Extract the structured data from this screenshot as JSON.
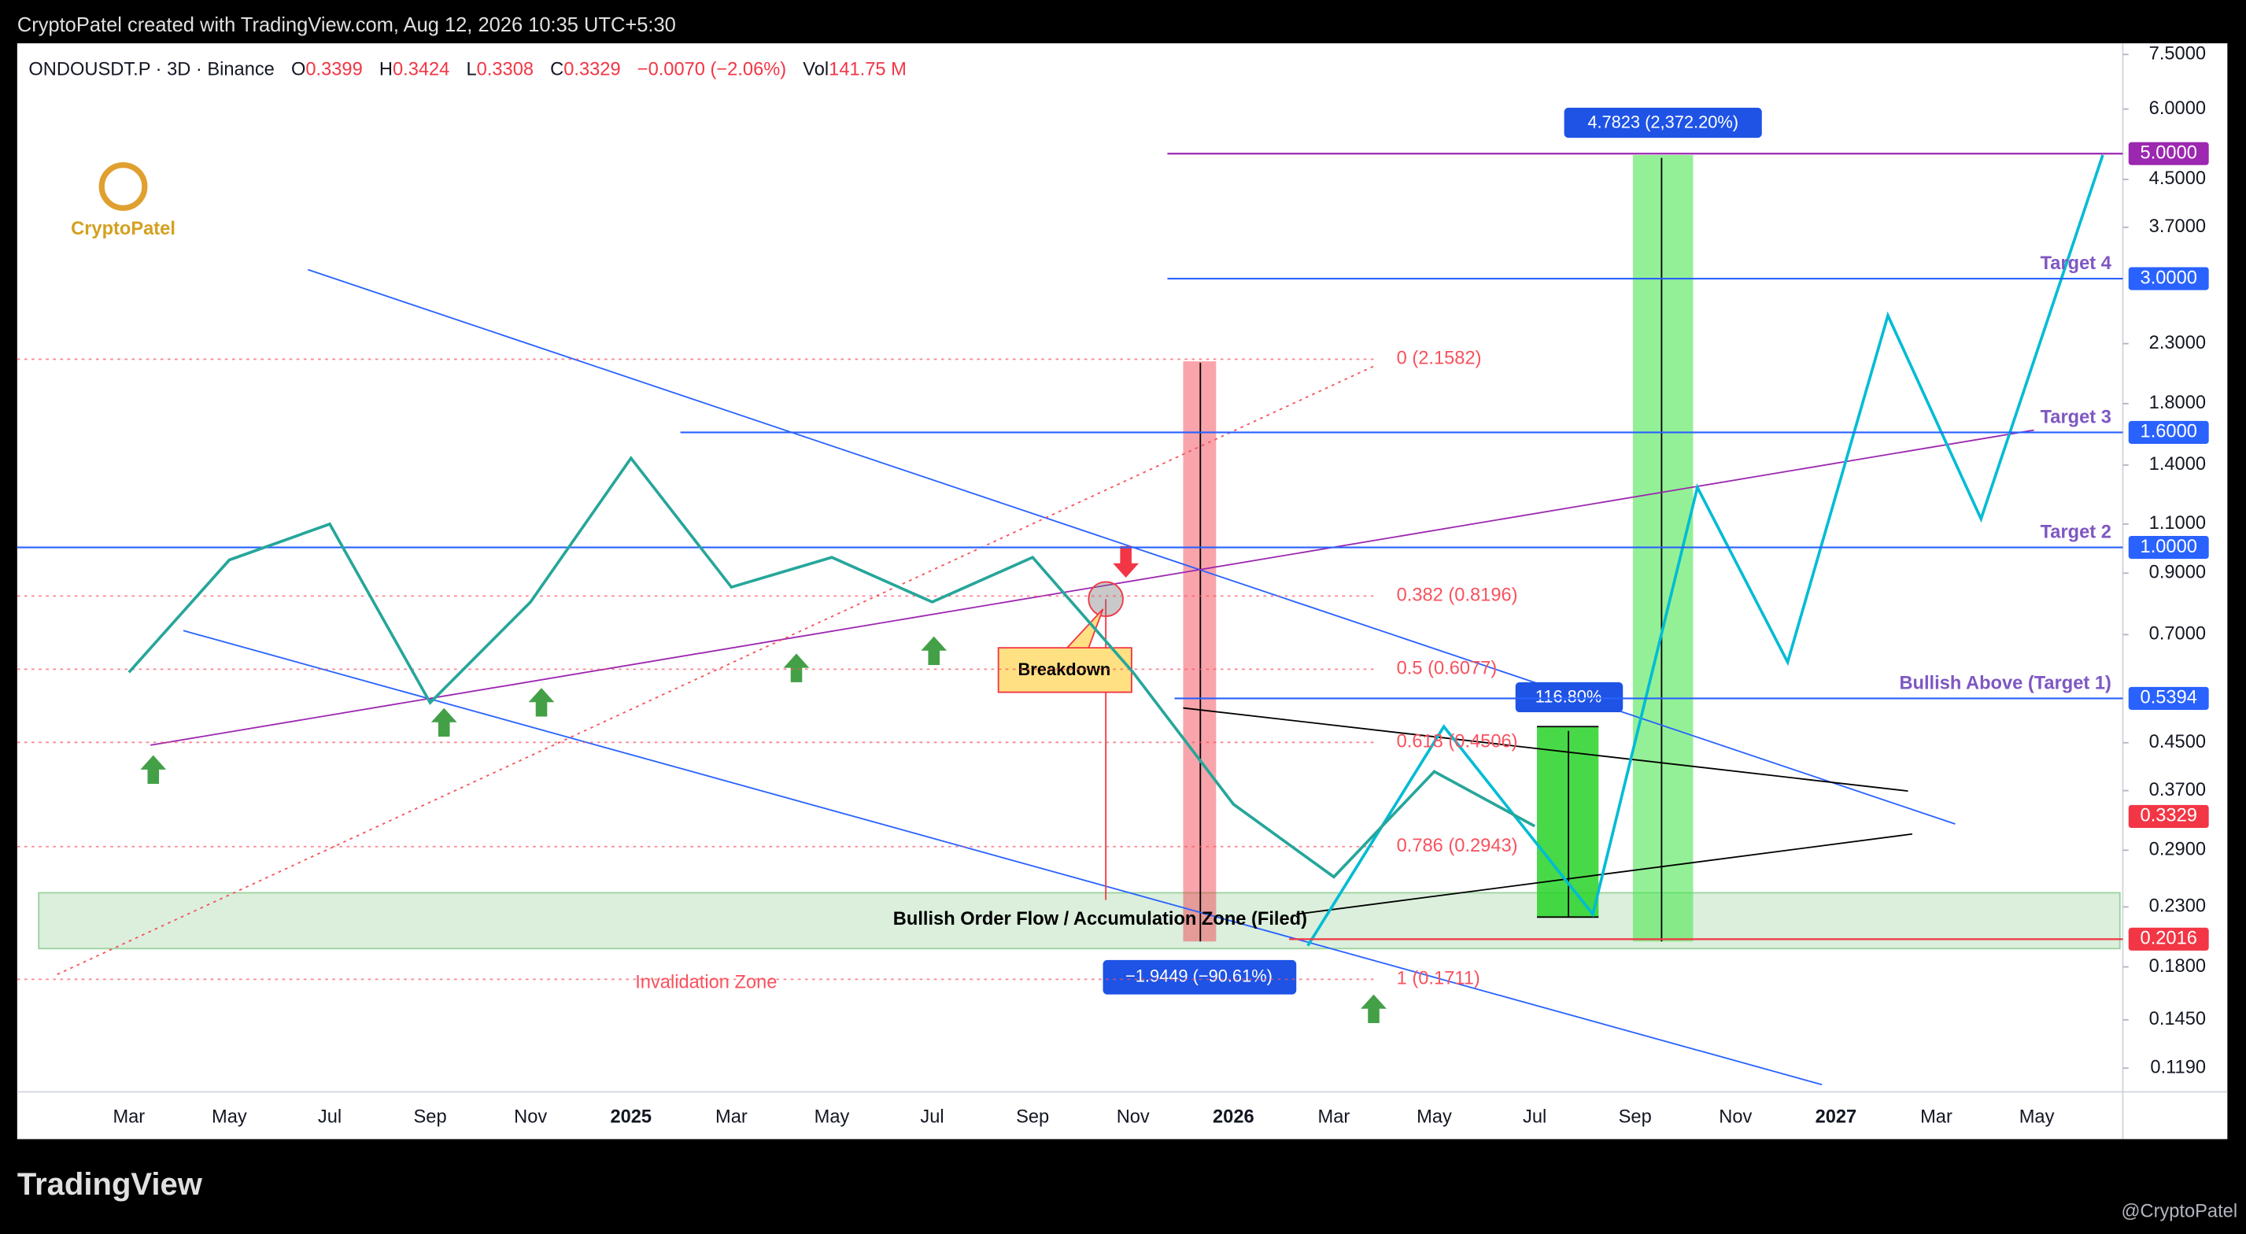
{
  "header": {
    "text": "CryptoPatel created with TradingView.com, Aug 12, 2026 10:35 UTC+5:30"
  },
  "legend": {
    "symbol": "ONDOUSDT.P · 3D · Binance",
    "open": {
      "label": "O",
      "value": "0.3399"
    },
    "high": {
      "label": "H",
      "value": "0.3424"
    },
    "low": {
      "label": "L",
      "value": "0.3308"
    },
    "close": {
      "label": "C",
      "value": "0.3329"
    },
    "change": "−0.0070 (−2.06%)",
    "volume": {
      "label": "Vol",
      "value": "141.75 M"
    }
  },
  "logo": "CryptoPatel",
  "chart_data": {
    "type": "line",
    "log_scale": true,
    "color": "#26a69a",
    "categories": [
      "Mar",
      "May",
      "Jul",
      "Sep",
      "Nov",
      "2025",
      "Mar",
      "May",
      "Jul",
      "Sep",
      "Nov",
      "2026",
      "Mar",
      "May",
      "Jul",
      "Sep",
      "Nov",
      "2027",
      "Mar",
      "May"
    ],
    "values": [
      0.6,
      0.95,
      1.1,
      0.53,
      0.8,
      1.44,
      0.85,
      0.96,
      0.8,
      0.96,
      0.6,
      0.35,
      0.26,
      0.4,
      0.32,
      null,
      null,
      null,
      null,
      null
    ],
    "ylim": [
      0.108,
      7.85
    ],
    "yticks": [
      {
        "value": 7.5,
        "label": "7.5000"
      },
      {
        "value": 6,
        "label": "6.0000"
      },
      {
        "value": 4.5,
        "label": "4.5000"
      },
      {
        "value": 3.7,
        "label": "3.7000"
      },
      {
        "value": 2.3,
        "label": "2.3000"
      },
      {
        "value": 1.8,
        "label": "1.8000"
      },
      {
        "value": 1.4,
        "label": "1.4000"
      },
      {
        "value": 1.1,
        "label": "1.1000"
      },
      {
        "value": 0.9,
        "label": "0.9000"
      },
      {
        "value": 0.7,
        "label": "0.7000"
      },
      {
        "value": 0.45,
        "label": "0.4500"
      },
      {
        "value": 0.37,
        "label": "0.3700"
      },
      {
        "value": 0.29,
        "label": "0.2900"
      },
      {
        "value": 0.23,
        "label": "0.2300"
      },
      {
        "value": 0.18,
        "label": "0.1800"
      },
      {
        "value": 0.145,
        "label": "0.1450"
      },
      {
        "value": 0.119,
        "label": "0.1190"
      }
    ],
    "price_levels": [
      {
        "value": 5,
        "label": "5.0000",
        "color": "#9c27b0"
      },
      {
        "value": 3,
        "label": "3.0000",
        "color": "#2962ff",
        "target": "Target 4"
      },
      {
        "value": 1.6,
        "label": "1.6000",
        "color": "#2962ff",
        "target": "Target 3"
      },
      {
        "value": 1,
        "label": "1.0000",
        "color": "#2962ff",
        "target": "Target 2"
      },
      {
        "value": 0.5394,
        "label": "0.5394",
        "color": "#2962ff",
        "target": "Bullish Above (Target 1)"
      },
      {
        "value": 0.3329,
        "label": "0.3329",
        "color": "#f23645"
      },
      {
        "value": 0.2016,
        "label": "0.2016",
        "color": "#f23645"
      }
    ],
    "fib_color": "#f7525f",
    "fib_levels": [
      {
        "value": 2.1582,
        "label": "0 (2.1582)"
      },
      {
        "value": 0.8196,
        "label": "0.382 (0.8196)"
      },
      {
        "value": 0.6077,
        "label": "0.5 (0.6077)"
      },
      {
        "value": 0.4506,
        "label": "0.618 (0.4506)"
      },
      {
        "value": 0.2943,
        "label": "0.786 (0.2943)"
      },
      {
        "value": 0.1711,
        "label": "1 (0.1711)"
      }
    ],
    "annotations": {
      "breakdown": "Breakdown",
      "zone": "Bullish Order Flow / Accumulation Zone (Filed)",
      "invalidation": "Invalidation Zone",
      "up_measure": "4.7823 (2,372.20%)",
      "mid_measure": "116.80%",
      "down_measure": "−1.9449 (−90.61%)"
    }
  },
  "footer": {
    "brand": "TradingView",
    "credit": "@CryptoPatel"
  }
}
